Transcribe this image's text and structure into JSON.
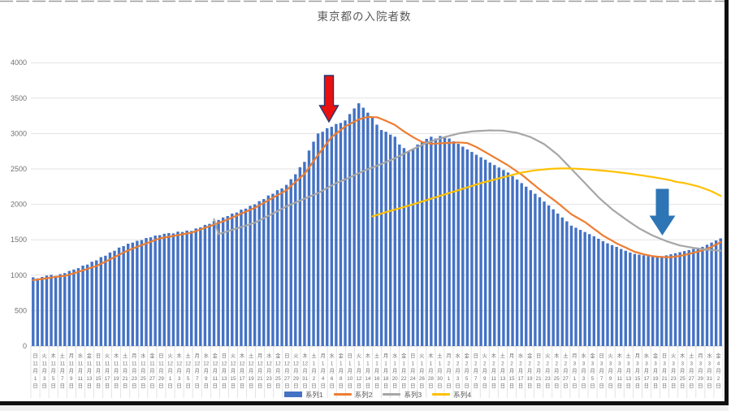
{
  "chart": {
    "colors": {
      "bar": "#4472C4",
      "line2": "#ED7D31",
      "line3": "#A6A6A6",
      "line4": "#FFC000",
      "gridline": "#E2E2E2",
      "axis_line": "#C9C9C9",
      "tick_text": "#707070",
      "title_text": "#595959"
    },
    "annotations": [
      {
        "name": "red-down-arrow",
        "fill": "#EB1010",
        "outline": "#24366E"
      },
      {
        "name": "blue-down-arrow",
        "fill": "#2E75B6",
        "outline": "#2E75B6"
      }
    ]
  },
  "chart_data": {
    "type": "combo",
    "title": "東京都の入院者数",
    "grid": true,
    "legend_position": "bottom-inside",
    "y_axis": {
      "min": 0,
      "max": 4000,
      "step": 500,
      "tick_labels": [
        "0",
        "500",
        "1000",
        "1500",
        "2000",
        "2500",
        "3000",
        "3500",
        "4000"
      ]
    },
    "x_axis": {
      "interval_days": 1,
      "tick_label_format": "曜日 / 月 / 日",
      "first_tick": "日 11月1日",
      "last_tick": "金 4月2日",
      "tick_labels": [
        "日,11,1",
        "火,11,3",
        "木,11,5",
        "土,11,7",
        "月,11,9",
        "水,11,11",
        "金,11,13",
        "日,11,15",
        "火,11,17",
        "木,11,19",
        "土,11,21",
        "月,11,23",
        "水,11,25",
        "金,11,27",
        "日,11,29",
        "火,12,1",
        "木,12,3",
        "土,12,5",
        "月,12,7",
        "水,12,9",
        "金,12,11",
        "日,12,13",
        "火,12,15",
        "木,12,17",
        "土,12,19",
        "月,12,21",
        "水,12,23",
        "金,12,25",
        "日,12,27",
        "火,12,29",
        "木,12,31",
        "土,1,2",
        "月,1,4",
        "水,1,6",
        "金,1,8",
        "日,1,10",
        "火,1,12",
        "木,1,14",
        "土,1,16",
        "月,1,18",
        "水,1,20",
        "金,1,22",
        "日,1,24",
        "火,1,26",
        "木,1,28",
        "土,1,30",
        "月,2,1",
        "水,2,3",
        "金,2,5",
        "日,2,7",
        "火,2,9",
        "木,2,11",
        "土,2,13",
        "月,2,15",
        "水,2,17",
        "金,2,19",
        "日,2,21",
        "火,2,23",
        "木,2,25",
        "土,2,27",
        "月,3,1",
        "水,3,3",
        "金,3,5",
        "日,3,7",
        "火,3,9",
        "木,3,11",
        "土,3,13",
        "月,3,15",
        "水,3,17",
        "金,3,19",
        "日,3,21",
        "火,3,23",
        "木,3,25",
        "土,3,27",
        "月,3,29",
        "水,3,31",
        "金,4,2"
      ]
    },
    "series": [
      {
        "name": "系列1",
        "type": "bar",
        "color": "#4472C4",
        "start_index": 0,
        "values": [
          970,
          955,
          975,
          995,
          1005,
          990,
          1015,
          1030,
          1060,
          1080,
          1100,
          1135,
          1150,
          1190,
          1210,
          1255,
          1275,
          1320,
          1345,
          1390,
          1410,
          1445,
          1460,
          1485,
          1495,
          1525,
          1535,
          1560,
          1565,
          1585,
          1595,
          1590,
          1615,
          1610,
          1630,
          1625,
          1660,
          1675,
          1710,
          1725,
          1765,
          1780,
          1815,
          1835,
          1870,
          1885,
          1925,
          1940,
          1980,
          2000,
          2045,
          2075,
          2125,
          2150,
          2200,
          2225,
          2275,
          2355,
          2425,
          2525,
          2600,
          2760,
          2885,
          3000,
          3025,
          3075,
          3095,
          3135,
          3150,
          3185,
          3275,
          3355,
          3427,
          3365,
          3295,
          3225,
          3125,
          3050,
          3025,
          2985,
          2955,
          2845,
          2795,
          2745,
          2785,
          2845,
          2885,
          2925,
          2955,
          2930,
          2965,
          2945,
          2930,
          2890,
          2855,
          2815,
          2775,
          2740,
          2700,
          2665,
          2630,
          2590,
          2555,
          2520,
          2485,
          2450,
          2400,
          2350,
          2300,
          2250,
          2200,
          2150,
          2100,
          2040,
          1985,
          1930,
          1870,
          1815,
          1760,
          1700,
          1670,
          1640,
          1610,
          1580,
          1550,
          1515,
          1480,
          1450,
          1425,
          1400,
          1370,
          1345,
          1320,
          1300,
          1290,
          1280,
          1270,
          1260,
          1265,
          1270,
          1280,
          1295,
          1310,
          1325,
          1340,
          1355,
          1370,
          1385,
          1400,
          1430,
          1460,
          1490,
          1520
        ]
      },
      {
        "name": "系列2",
        "type": "line",
        "color": "#ED7D31",
        "start_index": 0,
        "values": [
          930,
          938,
          947,
          956,
          966,
          977,
          984,
          990,
          1008,
          1028,
          1048,
          1068,
          1090,
          1110,
          1130,
          1160,
          1192,
          1224,
          1256,
          1288,
          1320,
          1350,
          1375,
          1400,
          1424,
          1448,
          1472,
          1496,
          1520,
          1531,
          1543,
          1554,
          1566,
          1577,
          1589,
          1600,
          1623,
          1646,
          1669,
          1691,
          1714,
          1737,
          1760,
          1787,
          1814,
          1841,
          1869,
          1896,
          1923,
          1950,
          1986,
          2021,
          2057,
          2093,
          2129,
          2164,
          2200,
          2258,
          2315,
          2373,
          2430,
          2520,
          2610,
          2700,
          2783,
          2867,
          2950,
          3000,
          3050,
          3100,
          3133,
          3167,
          3200,
          3218,
          3235,
          3232,
          3230,
          3205,
          3180,
          3150,
          3120,
          3075,
          3030,
          2990,
          2950,
          2915,
          2880,
          2868,
          2855,
          2858,
          2862,
          2865,
          2868,
          2872,
          2875,
          2870,
          2865,
          2838,
          2810,
          2773,
          2737,
          2700,
          2663,
          2625,
          2588,
          2550,
          2507,
          2463,
          2420,
          2368,
          2315,
          2263,
          2210,
          2163,
          2115,
          2068,
          2020,
          1967,
          1913,
          1860,
          1823,
          1787,
          1750,
          1703,
          1655,
          1608,
          1560,
          1523,
          1487,
          1450,
          1420,
          1390,
          1360,
          1330,
          1313,
          1295,
          1282,
          1268,
          1262,
          1256,
          1255,
          1255,
          1264,
          1272,
          1286,
          1300,
          1317,
          1334,
          1350,
          1375,
          1400,
          1433,
          1465
        ]
      },
      {
        "name": "系列3",
        "type": "line",
        "color": "#A6A6A6",
        "start_index": 40,
        "values": [
          1790,
          1580,
          1600,
          1620,
          1640,
          1660,
          1680,
          1700,
          1720,
          1740,
          1772,
          1805,
          1838,
          1870,
          1903,
          1937,
          1970,
          1998,
          2025,
          2053,
          2080,
          2107,
          2133,
          2160,
          2195,
          2230,
          2265,
          2300,
          2327,
          2353,
          2380,
          2410,
          2440,
          2470,
          2495,
          2520,
          2545,
          2570,
          2597,
          2623,
          2650,
          2683,
          2715,
          2748,
          2780,
          2810,
          2840,
          2870,
          2890,
          2910,
          2930,
          2950,
          2967,
          2983,
          3000,
          3010,
          3020,
          3030,
          3034,
          3038,
          3041,
          3045,
          3043,
          3042,
          3040,
          3030,
          3020,
          3010,
          2990,
          2970,
          2950,
          2917,
          2883,
          2850,
          2800,
          2750,
          2700,
          2633,
          2567,
          2500,
          2433,
          2367,
          2300,
          2233,
          2167,
          2100,
          2043,
          1987,
          1930,
          1883,
          1837,
          1790,
          1747,
          1703,
          1660,
          1627,
          1593,
          1560,
          1533,
          1507,
          1480,
          1460,
          1440,
          1420,
          1408,
          1397,
          1385,
          1377,
          1368,
          1360,
          1355,
          1350,
          1345
        ]
      },
      {
        "name": "系列4",
        "type": "line",
        "color": "#FFC000",
        "start_index": 75,
        "values": [
          1830,
          1850,
          1870,
          1890,
          1908,
          1927,
          1945,
          1963,
          1982,
          2000,
          2020,
          2040,
          2060,
          2080,
          2100,
          2120,
          2140,
          2160,
          2180,
          2200,
          2220,
          2240,
          2260,
          2280,
          2300,
          2317,
          2333,
          2350,
          2367,
          2383,
          2400,
          2417,
          2433,
          2450,
          2460,
          2470,
          2480,
          2487,
          2493,
          2500,
          2503,
          2506,
          2508,
          2507,
          2505,
          2503,
          2500,
          2496,
          2492,
          2487,
          2482,
          2476,
          2470,
          2463,
          2456,
          2448,
          2440,
          2432,
          2423,
          2414,
          2405,
          2395,
          2385,
          2375,
          2364,
          2352,
          2340,
          2320,
          2310,
          2300,
          2285,
          2270,
          2255,
          2232,
          2209,
          2185,
          2153,
          2120
        ]
      }
    ]
  }
}
